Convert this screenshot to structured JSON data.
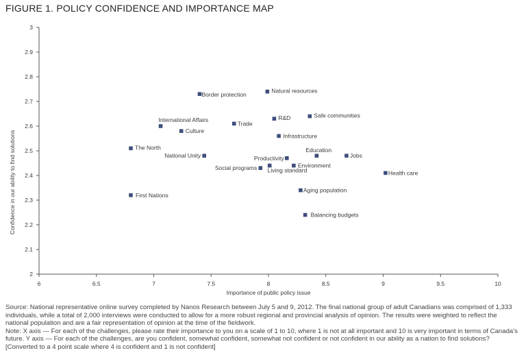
{
  "figure": {
    "title": "FIGURE 1. POLICY CONFIDENCE AND IMPORTANCE MAP"
  },
  "chart_data": {
    "type": "scatter",
    "xlabel": "Importance of public policy issue",
    "ylabel": "Confidence in our ability to find solutions",
    "xlim": [
      6,
      10
    ],
    "ylim": [
      2,
      3
    ],
    "xticks": [
      "6",
      "6.5",
      "7",
      "7.5",
      "8",
      "8.5",
      "9",
      "9.5",
      "10"
    ],
    "yticks": [
      "2",
      "2.1",
      "2.2",
      "2.3",
      "2.4",
      "2.5",
      "2.6",
      "2.7",
      "2.8",
      "2.9",
      "3"
    ],
    "grid": false,
    "marker_color": "#3d4f7c",
    "points": [
      {
        "label": "Border protection",
        "x": 7.4,
        "y": 2.73
      },
      {
        "label": "Natural resources",
        "x": 7.99,
        "y": 2.74
      },
      {
        "label": "R&D",
        "x": 8.05,
        "y": 2.63
      },
      {
        "label": "Safe communities",
        "x": 8.36,
        "y": 2.64
      },
      {
        "label": "International Affairs",
        "x": 7.06,
        "y": 2.6
      },
      {
        "label": "Trade",
        "x": 7.7,
        "y": 2.61
      },
      {
        "label": "Culture",
        "x": 7.24,
        "y": 2.58
      },
      {
        "label": "Infrastructure",
        "x": 8.09,
        "y": 2.56
      },
      {
        "label": "The North",
        "x": 6.8,
        "y": 2.51
      },
      {
        "label": "National Unity",
        "x": 7.44,
        "y": 2.48
      },
      {
        "label": "Productivity",
        "x": 8.16,
        "y": 2.47
      },
      {
        "label": "Education",
        "x": 8.42,
        "y": 2.48
      },
      {
        "label": "Jobs",
        "x": 8.68,
        "y": 2.48
      },
      {
        "label": "Social programs",
        "x": 7.93,
        "y": 2.43
      },
      {
        "label": "Living standard",
        "x": 8.01,
        "y": 2.44
      },
      {
        "label": "Environment",
        "x": 8.22,
        "y": 2.44
      },
      {
        "label": "Health care",
        "x": 9.02,
        "y": 2.41
      },
      {
        "label": "Aging population",
        "x": 8.28,
        "y": 2.34
      },
      {
        "label": "First Nations",
        "x": 6.8,
        "y": 2.32
      },
      {
        "label": "Balancing budgets",
        "x": 8.32,
        "y": 2.24
      }
    ]
  },
  "notes": {
    "source": "Source: National representative online survey completed by Nanos Research between July 5 and 9, 2012. The final national group of adult Canadians was comprised of 1,333 individuals, while a total of 2,000 interviews were conducted to allow for a more robust regional and provincial analysis of opinion. The results were weighted to reflect the national population and are a fair representation of opinion at the time of the fieldwork.",
    "note": "Note: X axis — For each of the challenges, please rate their importance to you on a scale of 1 to 10, where 1 is not at all important and 10 is very important in terms of Canada's future. Y axis — For each of the challenges, are you confident, somewhat confident, somewhat not confident or not confident in our ability as a nation to find solutions? [Converted to a 4 point scale where 4 is confident and 1 is not confident]"
  }
}
